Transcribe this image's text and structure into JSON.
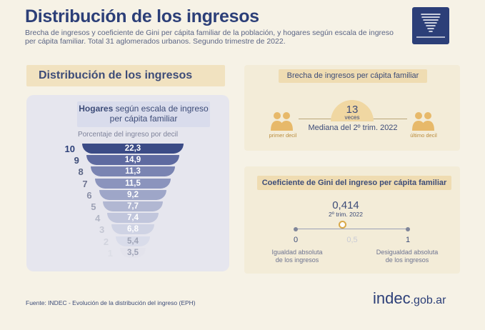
{
  "header": {
    "title": "Distribución de los ingresos",
    "subtitle": "Brecha de ingresos y coeficiente de Gini per cápita familiar de la población, y hogares según escala de ingreso per cápita familiar. Total 31 aglomerados urbanos. Segundo trimestre de 2022.",
    "logo_icon": "funnel-icon"
  },
  "distribution": {
    "section_title": "Distribución de los ingresos",
    "hogares_bold": "Hogares",
    "hogares_rest": "según escala de ingreso per cápita familiar",
    "pct_label": "Porcentaje del ingreso por decil",
    "deciles": [
      {
        "decil": "10",
        "value": "22,3"
      },
      {
        "decil": "9",
        "value": "14,9"
      },
      {
        "decil": "8",
        "value": "11,3"
      },
      {
        "decil": "7",
        "value": "11,5"
      },
      {
        "decil": "6",
        "value": "9,2"
      },
      {
        "decil": "5",
        "value": "7,7"
      },
      {
        "decil": "4",
        "value": "7,4"
      },
      {
        "decil": "3",
        "value": "6,8"
      },
      {
        "decil": "2",
        "value": "5,4"
      },
      {
        "decil": "1",
        "value": "3,5"
      }
    ],
    "colors": {
      "bar_top": "#3b4b86",
      "bar_bottom": "#e3e3ec"
    }
  },
  "brecha": {
    "title": "Brecha de ingresos per cápita familiar",
    "value": "13",
    "unit": "veces",
    "median_label": "Mediana del 2º trim. 2022",
    "left_label": "primer decil",
    "right_label": "último decil",
    "icon_left": "people-icon",
    "icon_right": "people-icon",
    "accent_color": "#e7b96a"
  },
  "gini": {
    "title": "Coeficiente de Gini del ingreso per cápita familiar",
    "value": "0,414",
    "period": "2º trim. 2022",
    "position": 0.414,
    "scale": {
      "min": "0",
      "mid": "0,5",
      "max": "1"
    },
    "left_label_line1": "Igualdad absoluta",
    "left_label_line2": "de los ingresos",
    "right_label_line1": "Desigualdad absoluta",
    "right_label_line2": "de los ingresos"
  },
  "footer": {
    "source": "Fuente: INDEC - Evolución de la distribución del ingreso (EPH)",
    "brand_main": "indec",
    "brand_domain": ".gob.ar"
  }
}
